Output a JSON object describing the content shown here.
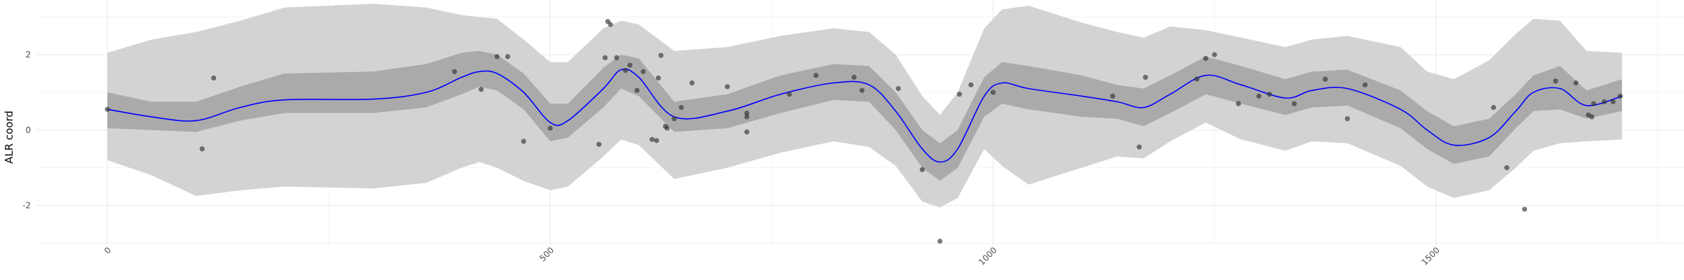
{
  "chart_data": {
    "type": "line",
    "title": "",
    "xlabel": "",
    "ylabel": "ALR coord",
    "xlim": [
      -80,
      1780
    ],
    "ylim": [
      -3.05,
      3.45
    ],
    "x_ticks": [
      0,
      500,
      1000,
      1500
    ],
    "x_tick_labels": [
      "0",
      "500",
      "1000",
      "1500"
    ],
    "y_ticks": [
      -2,
      0,
      2
    ],
    "y_tick_labels": [
      "-2",
      "0",
      "2"
    ],
    "grid": true,
    "legend": "none",
    "colors": {
      "mean_line": "#0000ff",
      "inner_band": "#aaaaaa",
      "outer_band": "#d3d3d3",
      "points": "#333333",
      "grid": "#ebebeb"
    },
    "mean": {
      "x": [
        0,
        50,
        100,
        150,
        200,
        300,
        360,
        400,
        420,
        440,
        470,
        500,
        520,
        560,
        580,
        600,
        640,
        700,
        760,
        820,
        860,
        890,
        920,
        940,
        960,
        990,
        1010,
        1040,
        1100,
        1140,
        1170,
        1200,
        1240,
        1280,
        1330,
        1360,
        1400,
        1460,
        1490,
        1520,
        1560,
        1590,
        1610,
        1640,
        1670,
        1710
      ],
      "y": [
        0.55,
        0.35,
        0.25,
        0.6,
        0.8,
        0.82,
        1.0,
        1.4,
        1.55,
        1.5,
        1.0,
        0.2,
        0.25,
        1.1,
        1.6,
        1.4,
        0.35,
        0.5,
        0.95,
        1.25,
        1.2,
        0.5,
        -0.5,
        -0.85,
        -0.5,
        0.9,
        1.25,
        1.1,
        0.9,
        0.75,
        0.6,
        0.95,
        1.45,
        1.2,
        0.85,
        1.05,
        1.1,
        0.55,
        0.0,
        -0.4,
        -0.2,
        0.5,
        1.0,
        1.1,
        0.65,
        0.9
      ]
    },
    "inner_band": {
      "lower": [
        0.05,
        0.0,
        -0.05,
        0.25,
        0.45,
        0.45,
        0.6,
        0.95,
        1.15,
        1.05,
        0.55,
        -0.3,
        -0.2,
        0.6,
        1.1,
        0.9,
        -0.05,
        0.05,
        0.45,
        0.8,
        0.75,
        0.0,
        -1.0,
        -1.35,
        -1.0,
        0.35,
        0.7,
        0.55,
        0.35,
        0.3,
        0.1,
        0.45,
        0.95,
        0.7,
        0.4,
        0.6,
        0.65,
        0.05,
        -0.5,
        -0.9,
        -0.7,
        0.05,
        0.5,
        0.55,
        0.3,
        0.5
      ],
      "upper": [
        1.0,
        0.75,
        0.75,
        1.15,
        1.5,
        1.55,
        1.75,
        2.05,
        2.1,
        2.0,
        1.5,
        0.7,
        0.7,
        1.65,
        2.0,
        1.9,
        0.75,
        0.95,
        1.45,
        1.75,
        1.7,
        1.0,
        0.0,
        -0.35,
        0.0,
        1.4,
        1.8,
        1.7,
        1.45,
        1.2,
        1.1,
        1.45,
        1.95,
        1.7,
        1.35,
        1.55,
        1.6,
        1.05,
        0.5,
        0.1,
        0.3,
        0.95,
        1.45,
        1.7,
        1.05,
        1.35
      ]
    },
    "outer_band": {
      "lower": [
        -0.8,
        -1.2,
        -1.75,
        -1.6,
        -1.5,
        -1.55,
        -1.4,
        -1.0,
        -0.85,
        -1.0,
        -1.35,
        -1.6,
        -1.5,
        -0.7,
        -0.25,
        -0.4,
        -1.3,
        -1.0,
        -0.6,
        -0.3,
        -0.45,
        -0.95,
        -1.9,
        -2.05,
        -1.8,
        -0.5,
        -0.95,
        -1.45,
        -1.0,
        -0.7,
        -0.75,
        -0.3,
        0.2,
        -0.25,
        -0.55,
        -0.3,
        -0.35,
        -0.95,
        -1.5,
        -1.8,
        -1.6,
        -1.0,
        -0.55,
        -0.35,
        -0.3,
        -0.25
      ],
      "upper": [
        2.05,
        2.4,
        2.6,
        2.9,
        3.25,
        3.35,
        3.25,
        3.05,
        3.0,
        2.95,
        2.4,
        1.8,
        1.8,
        2.7,
        2.9,
        2.8,
        2.1,
        2.2,
        2.5,
        2.7,
        2.6,
        2.0,
        0.9,
        0.4,
        1.0,
        2.7,
        3.2,
        3.3,
        2.85,
        2.6,
        2.45,
        2.75,
        2.65,
        2.45,
        2.2,
        2.4,
        2.5,
        2.2,
        1.55,
        1.35,
        1.85,
        2.55,
        2.95,
        2.9,
        2.1,
        2.05
      ]
    },
    "points": {
      "x": [
        0,
        107,
        120,
        392,
        422,
        440,
        452,
        470,
        500,
        555,
        562,
        565,
        568,
        575,
        585,
        590,
        598,
        605,
        615,
        620,
        622,
        625,
        630,
        632,
        640,
        648,
        660,
        700,
        722,
        722,
        722,
        770,
        800,
        843,
        852,
        893,
        920,
        940,
        962,
        975,
        1000,
        1135,
        1165,
        1172,
        1230,
        1240,
        1250,
        1277,
        1300,
        1312,
        1340,
        1375,
        1400,
        1420,
        1565,
        1580,
        1600,
        1635,
        1658,
        1672,
        1676,
        1678,
        1690,
        1700,
        1708
      ],
      "y": [
        0.55,
        -0.5,
        1.38,
        1.55,
        1.08,
        1.95,
        1.95,
        -0.3,
        0.05,
        -0.38,
        1.92,
        2.88,
        2.8,
        1.92,
        1.58,
        1.72,
        1.05,
        1.55,
        -0.25,
        -0.28,
        1.38,
        1.98,
        0.1,
        0.05,
        0.3,
        0.6,
        1.25,
        1.15,
        0.35,
        0.45,
        -0.05,
        0.95,
        1.45,
        1.4,
        1.05,
        1.1,
        -1.05,
        -2.95,
        0.95,
        1.2,
        1.0,
        0.9,
        -0.45,
        1.4,
        1.35,
        1.9,
        2.0,
        0.7,
        0.9,
        0.95,
        0.7,
        1.35,
        0.3,
        1.2,
        0.6,
        -1.0,
        -2.1,
        1.3,
        1.25,
        0.4,
        0.35,
        0.7,
        0.75,
        0.75,
        0.9
      ]
    }
  }
}
